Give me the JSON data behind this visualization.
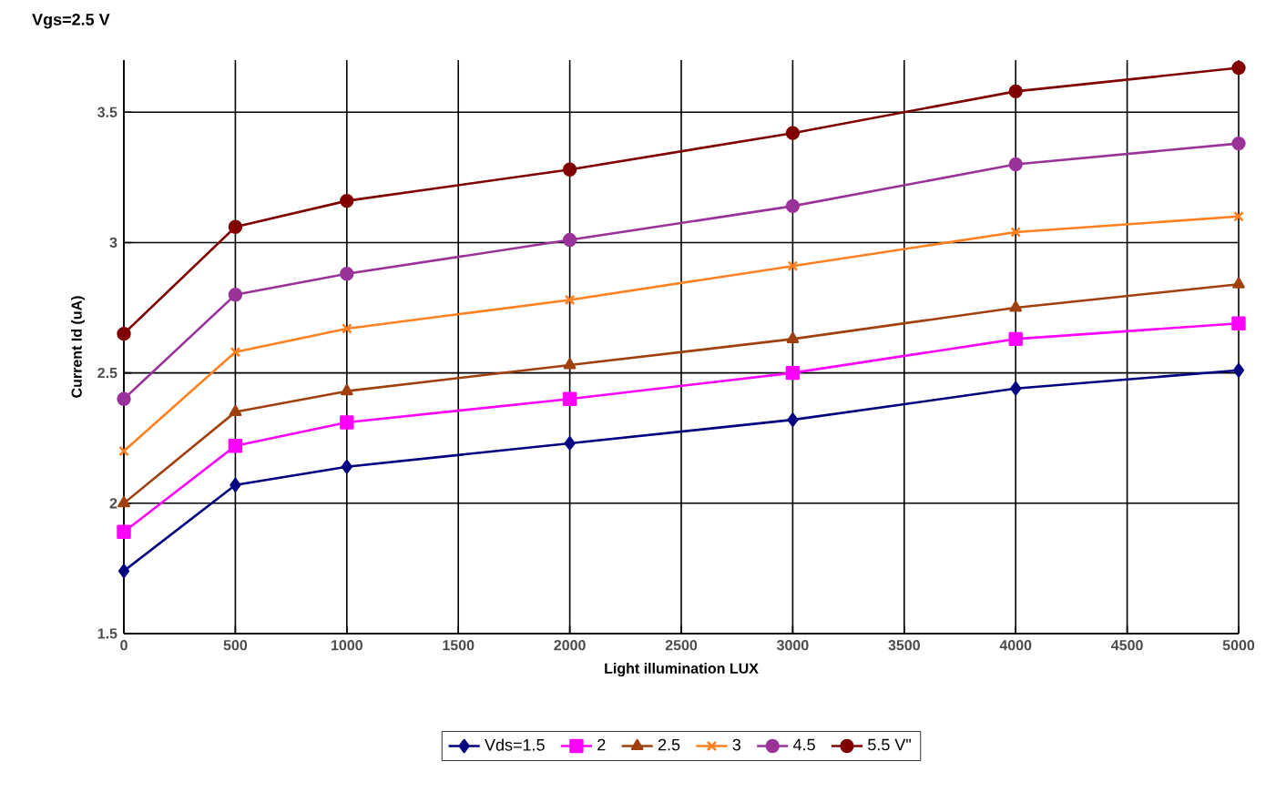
{
  "chart_data": {
    "type": "line",
    "title": "Vgs=2.5 V",
    "xlabel": "Light illumination LUX",
    "ylabel": "Current Id (uA)",
    "x": [
      0,
      500,
      1000,
      2000,
      3000,
      4000,
      5000
    ],
    "series": [
      {
        "name": "Vds=1.5",
        "color": "#000080",
        "marker": "diamond",
        "values": [
          1.74,
          2.07,
          2.14,
          2.23,
          2.32,
          2.44,
          2.51
        ]
      },
      {
        "name": "2",
        "color": "#ff00ff",
        "marker": "square",
        "values": [
          1.89,
          2.22,
          2.31,
          2.4,
          2.5,
          2.63,
          2.69
        ]
      },
      {
        "name": "2.5",
        "color": "#a0400f",
        "marker": "triangle",
        "values": [
          2.0,
          2.35,
          2.43,
          2.53,
          2.63,
          2.75,
          2.84
        ]
      },
      {
        "name": "3",
        "color": "#ff8020",
        "marker": "cross",
        "values": [
          2.2,
          2.58,
          2.67,
          2.78,
          2.91,
          3.04,
          3.1
        ]
      },
      {
        "name": "4.5",
        "color": "#993399",
        "marker": "circle",
        "values": [
          2.4,
          2.8,
          2.88,
          3.01,
          3.14,
          3.3,
          3.38
        ]
      },
      {
        "name": "5.5 V\"",
        "color": "#800000",
        "marker": "circle",
        "values": [
          2.65,
          3.06,
          3.16,
          3.28,
          3.42,
          3.58,
          3.67
        ]
      }
    ],
    "xlim": [
      0,
      5000
    ],
    "ylim": [
      1.5,
      3.7
    ],
    "xticks": [
      0,
      500,
      1000,
      1500,
      2000,
      2500,
      3000,
      3500,
      4000,
      4500,
      5000
    ],
    "yticks": [
      1.5,
      2,
      2.5,
      3,
      3.5
    ],
    "grid": true,
    "legend": "bottom",
    "line_style": "solid"
  }
}
